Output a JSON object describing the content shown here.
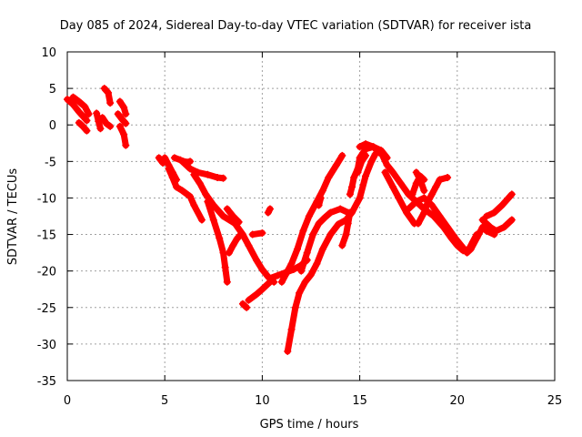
{
  "chart_data": {
    "type": "scatter",
    "title": "Day 085 of 2024, Sidereal Day-to-day VTEC variation (SDTVAR) for receiver ista",
    "xlabel": "GPS time / hours",
    "ylabel": "SDTVAR / TECUs",
    "xlim": [
      0,
      25
    ],
    "ylim": [
      -35,
      10
    ],
    "xticks": [
      0,
      5,
      10,
      15,
      20,
      25
    ],
    "yticks": [
      -35,
      -30,
      -25,
      -20,
      -15,
      -10,
      -5,
      0,
      5,
      10
    ],
    "grid": true,
    "marker": "+",
    "color": "#ff0000",
    "segments": [
      [
        [
          0.0,
          3.5
        ],
        [
          0.3,
          2.8
        ],
        [
          0.6,
          1.8
        ],
        [
          0.8,
          1.2
        ],
        [
          1.0,
          0.6
        ]
      ],
      [
        [
          0.3,
          3.8
        ],
        [
          0.6,
          3.2
        ],
        [
          0.9,
          2.5
        ],
        [
          1.1,
          1.5
        ]
      ],
      [
        [
          0.6,
          0.3
        ],
        [
          0.8,
          -0.2
        ],
        [
          1.0,
          -0.8
        ]
      ],
      [
        [
          1.5,
          1.6
        ],
        [
          1.6,
          0.5
        ],
        [
          1.7,
          -0.5
        ]
      ],
      [
        [
          1.9,
          5.0
        ],
        [
          2.1,
          4.4
        ],
        [
          2.2,
          3.0
        ]
      ],
      [
        [
          1.8,
          1.0
        ],
        [
          2.0,
          0.2
        ],
        [
          2.2,
          -0.2
        ]
      ],
      [
        [
          2.7,
          3.2
        ],
        [
          2.9,
          2.4
        ],
        [
          3.0,
          1.5
        ]
      ],
      [
        [
          2.6,
          1.5
        ],
        [
          2.8,
          0.8
        ],
        [
          3.0,
          0.2
        ]
      ],
      [
        [
          2.7,
          -0.2
        ],
        [
          2.9,
          -1.3
        ],
        [
          3.0,
          -2.8
        ]
      ],
      [
        [
          4.7,
          -4.5
        ],
        [
          4.9,
          -5.2
        ]
      ],
      [
        [
          5.0,
          -4.5
        ],
        [
          5.2,
          -5.5
        ],
        [
          5.4,
          -6.5
        ],
        [
          5.6,
          -7.5
        ]
      ],
      [
        [
          5.5,
          -4.5
        ],
        [
          5.8,
          -4.8
        ],
        [
          6.1,
          -5.1
        ],
        [
          6.3,
          -5.0
        ]
      ],
      [
        [
          5.2,
          -6.0
        ],
        [
          5.4,
          -7.2
        ],
        [
          5.6,
          -8.5
        ],
        [
          5.9,
          -9.0
        ],
        [
          6.3,
          -9.8
        ],
        [
          6.5,
          -11.0
        ],
        [
          6.9,
          -13.0
        ]
      ],
      [
        [
          5.9,
          -5.0
        ],
        [
          6.3,
          -6.0
        ],
        [
          6.7,
          -6.5
        ],
        [
          7.2,
          -6.8
        ],
        [
          7.7,
          -7.2
        ],
        [
          8.0,
          -7.3
        ]
      ],
      [
        [
          6.5,
          -6.8
        ],
        [
          6.8,
          -8.0
        ],
        [
          7.1,
          -9.5
        ],
        [
          7.5,
          -11.0
        ],
        [
          8.0,
          -12.5
        ],
        [
          8.6,
          -13.5
        ],
        [
          9.0,
          -15.0
        ],
        [
          9.3,
          -16.5
        ],
        [
          9.7,
          -18.5
        ],
        [
          10.0,
          -19.8
        ],
        [
          10.3,
          -20.8
        ],
        [
          10.6,
          -21.5
        ]
      ],
      [
        [
          7.2,
          -10.5
        ],
        [
          7.5,
          -13.0
        ],
        [
          7.8,
          -15.5
        ],
        [
          8.0,
          -17.5
        ],
        [
          8.1,
          -19.5
        ],
        [
          8.2,
          -21.5
        ]
      ],
      [
        [
          8.3,
          -17.5
        ],
        [
          8.5,
          -16.5
        ],
        [
          8.7,
          -15.6
        ],
        [
          8.9,
          -15.0
        ]
      ],
      [
        [
          8.2,
          -11.5
        ],
        [
          8.5,
          -12.5
        ],
        [
          8.8,
          -13.3
        ]
      ],
      [
        [
          9.0,
          -24.5
        ],
        [
          9.2,
          -25.0
        ]
      ],
      [
        [
          9.3,
          -24.0
        ],
        [
          9.7,
          -23.2
        ],
        [
          10.0,
          -22.5
        ],
        [
          10.4,
          -21.5
        ]
      ],
      [
        [
          9.5,
          -15.0
        ],
        [
          10.0,
          -14.8
        ]
      ],
      [
        [
          10.3,
          -12.0
        ],
        [
          10.4,
          -11.5
        ]
      ],
      [
        [
          10.4,
          -21.0
        ],
        [
          10.8,
          -20.6
        ],
        [
          11.2,
          -20.2
        ],
        [
          11.6,
          -19.8
        ],
        [
          12.0,
          -19.2
        ],
        [
          12.3,
          -18.5
        ]
      ],
      [
        [
          11.0,
          -21.5
        ],
        [
          11.2,
          -20.5
        ],
        [
          11.5,
          -19.0
        ],
        [
          11.8,
          -17.0
        ],
        [
          12.1,
          -14.5
        ],
        [
          12.4,
          -12.5
        ],
        [
          12.8,
          -10.5
        ],
        [
          13.1,
          -9.0
        ],
        [
          13.4,
          -7.2
        ],
        [
          13.8,
          -5.5
        ],
        [
          14.1,
          -4.2
        ]
      ],
      [
        [
          11.3,
          -31.0
        ],
        [
          11.5,
          -28.0
        ],
        [
          11.7,
          -25.0
        ],
        [
          11.9,
          -23.0
        ],
        [
          12.2,
          -21.5
        ],
        [
          12.5,
          -20.5
        ],
        [
          12.8,
          -19.0
        ],
        [
          13.1,
          -17.0
        ],
        [
          13.5,
          -15.0
        ],
        [
          13.9,
          -13.6
        ],
        [
          14.3,
          -13.0
        ],
        [
          14.6,
          -12.0
        ],
        [
          15.0,
          -10.0
        ],
        [
          15.3,
          -7.0
        ],
        [
          15.6,
          -5.0
        ],
        [
          15.8,
          -4.0
        ]
      ],
      [
        [
          12.0,
          -20.0
        ],
        [
          12.3,
          -17.5
        ],
        [
          12.6,
          -15.0
        ],
        [
          12.9,
          -13.5
        ],
        [
          13.2,
          -12.7
        ],
        [
          13.5,
          -12.0
        ],
        [
          14.0,
          -11.5
        ],
        [
          14.4,
          -12.0
        ]
      ],
      [
        [
          12.9,
          -11.0
        ],
        [
          13.0,
          -10.0
        ]
      ],
      [
        [
          14.1,
          -16.5
        ],
        [
          14.3,
          -15.0
        ],
        [
          14.4,
          -13.5
        ],
        [
          14.5,
          -12.0
        ]
      ],
      [
        [
          14.5,
          -9.5
        ],
        [
          14.6,
          -8.5
        ],
        [
          14.7,
          -7.2
        ],
        [
          14.9,
          -6.0
        ],
        [
          15.0,
          -4.5
        ],
        [
          15.3,
          -3.3
        ],
        [
          15.7,
          -3.0
        ],
        [
          16.1,
          -3.5
        ],
        [
          16.4,
          -4.5
        ]
      ],
      [
        [
          15.0,
          -3.0
        ],
        [
          15.3,
          -2.6
        ],
        [
          15.7,
          -3.0
        ],
        [
          16.0,
          -3.8
        ]
      ],
      [
        [
          14.9,
          -6.5
        ],
        [
          15.1,
          -5.0
        ],
        [
          15.3,
          -4.2
        ]
      ],
      [
        [
          16.1,
          -3.8
        ],
        [
          16.4,
          -5.5
        ],
        [
          16.7,
          -6.5
        ],
        [
          17.1,
          -8.0
        ],
        [
          17.5,
          -9.5
        ],
        [
          17.9,
          -10.5
        ],
        [
          18.3,
          -11.5
        ],
        [
          18.8,
          -12.5
        ],
        [
          19.3,
          -14.0
        ],
        [
          19.7,
          -15.5
        ],
        [
          20.0,
          -16.5
        ],
        [
          20.3,
          -17.2
        ],
        [
          20.6,
          -17.0
        ],
        [
          20.8,
          -16.0
        ],
        [
          21.0,
          -15.0
        ]
      ],
      [
        [
          16.3,
          -6.5
        ],
        [
          16.7,
          -8.5
        ],
        [
          17.0,
          -10.0
        ],
        [
          17.4,
          -12.0
        ],
        [
          17.8,
          -13.5
        ]
      ],
      [
        [
          17.5,
          -11.5
        ],
        [
          17.9,
          -10.5
        ],
        [
          18.3,
          -10.0
        ],
        [
          18.7,
          -11.0
        ],
        [
          19.1,
          -12.5
        ],
        [
          19.5,
          -14.0
        ],
        [
          19.9,
          -15.5
        ],
        [
          20.2,
          -16.5
        ],
        [
          20.5,
          -17.5
        ],
        [
          20.7,
          -17.0
        ],
        [
          21.0,
          -15.5
        ],
        [
          21.3,
          -14.0
        ]
      ],
      [
        [
          17.7,
          -9.5
        ],
        [
          17.9,
          -8.0
        ],
        [
          18.1,
          -7.0
        ],
        [
          18.3,
          -7.5
        ]
      ],
      [
        [
          18.0,
          -13.5
        ],
        [
          18.3,
          -12.0
        ],
        [
          18.5,
          -10.5
        ],
        [
          18.7,
          -9.5
        ],
        [
          18.9,
          -8.5
        ],
        [
          19.1,
          -7.5
        ],
        [
          19.5,
          -7.2
        ]
      ],
      [
        [
          17.9,
          -6.5
        ],
        [
          18.1,
          -7.5
        ],
        [
          18.3,
          -9.0
        ]
      ],
      [
        [
          21.3,
          -13.0
        ],
        [
          21.7,
          -14.0
        ],
        [
          22.0,
          -14.5
        ],
        [
          22.4,
          -14.0
        ],
        [
          22.8,
          -13.0
        ]
      ],
      [
        [
          21.5,
          -12.5
        ],
        [
          21.9,
          -12.0
        ],
        [
          22.3,
          -11.0
        ],
        [
          22.8,
          -9.5
        ]
      ],
      [
        [
          21.5,
          -14.5
        ],
        [
          21.9,
          -15.0
        ]
      ]
    ]
  }
}
